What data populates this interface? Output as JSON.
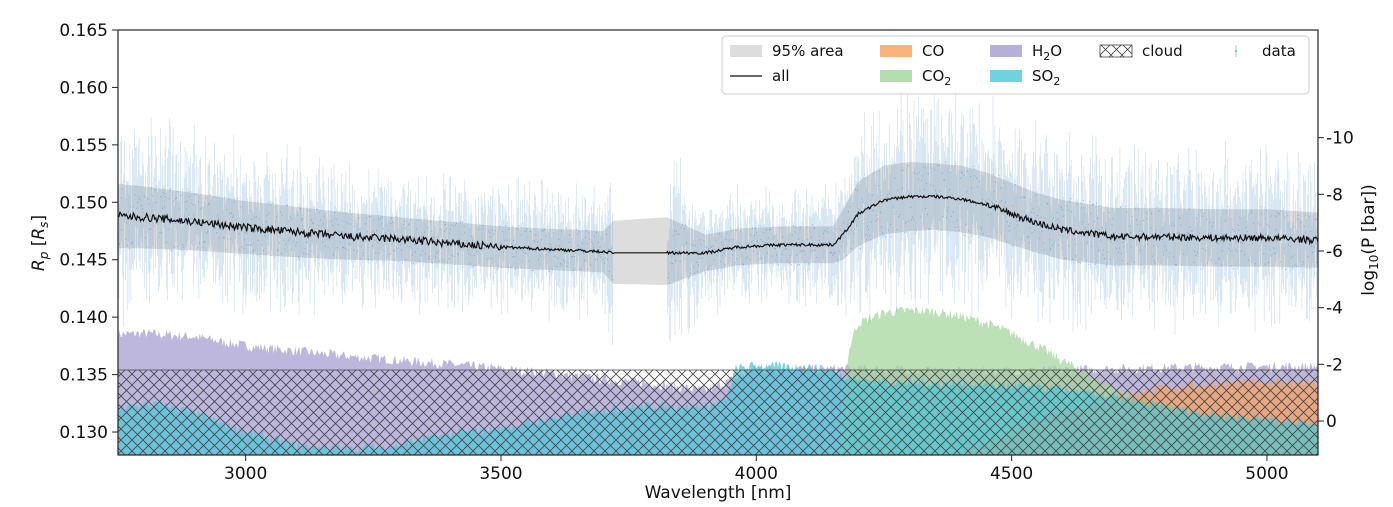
{
  "chart_data": {
    "type": "line",
    "xlabel": "Wavelength [nm]",
    "ylabel": "R_p [R_s]",
    "ylabel_right": "log10(P [bar])",
    "xlim": [
      2750,
      5100
    ],
    "ylim": [
      0.128,
      0.165
    ],
    "right_ylim": [
      1.2,
      -13.8
    ],
    "x_ticks": [
      3000,
      3500,
      4000,
      4500,
      5000
    ],
    "y_ticks": [
      0.13,
      0.135,
      0.14,
      0.145,
      0.15,
      0.155,
      0.16,
      0.165
    ],
    "right_ticks": [
      0,
      -2,
      -4,
      -6,
      -8,
      -10
    ],
    "grid": false,
    "legend_position": "top-right",
    "legend": [
      {
        "key": "area95",
        "label": "95% area"
      },
      {
        "key": "all",
        "label": "all"
      },
      {
        "key": "co",
        "label": "CO"
      },
      {
        "key": "co2",
        "label": "CO",
        "sub": "2"
      },
      {
        "key": "h2o",
        "label": "H",
        "sub": "2",
        "suffix": "O"
      },
      {
        "key": "so2",
        "label": "SO",
        "sub": "2"
      },
      {
        "key": "cloud",
        "label": "cloud"
      },
      {
        "key": "data",
        "label": "data"
      }
    ],
    "colors": {
      "area95": "#d9d9d9",
      "all": "#111111",
      "co": "#f7a15e",
      "co2": "#a3d69b",
      "h2o": "#a59bd0",
      "so2": "#4cc6d8",
      "data": "#4a90c9",
      "cloud_edge": "#444444"
    },
    "data_gap_nm": [
      3720,
      3825
    ],
    "model_all": {
      "x": [
        2750,
        2800,
        2900,
        3000,
        3100,
        3200,
        3300,
        3400,
        3500,
        3600,
        3700,
        3720,
        3825,
        3900,
        3940,
        3960,
        4000,
        4050,
        4100,
        4150,
        4170,
        4200,
        4250,
        4300,
        4350,
        4400,
        4450,
        4500,
        4550,
        4600,
        4700,
        4800,
        4900,
        5000,
        5100
      ],
      "y": [
        0.1488,
        0.1487,
        0.1483,
        0.1478,
        0.1474,
        0.147,
        0.1468,
        0.1464,
        0.1461,
        0.1459,
        0.1457,
        0.1456,
        0.1456,
        0.1456,
        0.1459,
        0.1461,
        0.1462,
        0.1463,
        0.1463,
        0.1463,
        0.1472,
        0.149,
        0.1502,
        0.1505,
        0.1505,
        0.1503,
        0.1498,
        0.149,
        0.1482,
        0.1476,
        0.147,
        0.147,
        0.1469,
        0.1469,
        0.1467
      ]
    },
    "band_95": {
      "x": [
        2750,
        2800,
        2900,
        3000,
        3100,
        3200,
        3300,
        3400,
        3500,
        3600,
        3700,
        3720,
        3825,
        3900,
        3940,
        3960,
        4000,
        4050,
        4100,
        4150,
        4170,
        4200,
        4250,
        4300,
        4350,
        4400,
        4450,
        4500,
        4550,
        4600,
        4700,
        4800,
        4900,
        5000,
        5100
      ],
      "lower": [
        0.146,
        0.146,
        0.1458,
        0.1455,
        0.1452,
        0.145,
        0.1449,
        0.1446,
        0.1443,
        0.1441,
        0.1439,
        0.1429,
        0.1428,
        0.144,
        0.1443,
        0.1445,
        0.1446,
        0.1447,
        0.1447,
        0.1447,
        0.145,
        0.1462,
        0.1472,
        0.1475,
        0.1476,
        0.1474,
        0.147,
        0.1463,
        0.1456,
        0.145,
        0.1445,
        0.1445,
        0.1444,
        0.1444,
        0.1443
      ],
      "upper": [
        0.1516,
        0.1514,
        0.1508,
        0.1501,
        0.1496,
        0.1491,
        0.1487,
        0.1483,
        0.1479,
        0.1477,
        0.1475,
        0.1484,
        0.1487,
        0.1472,
        0.1475,
        0.1477,
        0.1478,
        0.1479,
        0.1479,
        0.1479,
        0.1494,
        0.1518,
        0.1532,
        0.1535,
        0.1534,
        0.1532,
        0.1526,
        0.1517,
        0.1508,
        0.1502,
        0.1495,
        0.1495,
        0.1494,
        0.1494,
        0.1491
      ]
    },
    "contributions": [
      {
        "key": "h2o",
        "x": [
          2750,
          2800,
          2900,
          3000,
          3200,
          3400,
          3600,
          3700,
          3800,
          3900,
          3950,
          4000,
          4100,
          4200,
          4400,
          4600,
          4800,
          5000,
          5100
        ],
        "y": [
          0.1385,
          0.1386,
          0.1383,
          0.1375,
          0.1366,
          0.1359,
          0.1351,
          0.1346,
          0.1342,
          0.1336,
          0.1345,
          0.1356,
          0.1355,
          0.1355,
          0.1353,
          0.1354,
          0.1356,
          0.1357,
          0.1357
        ]
      },
      {
        "key": "co2",
        "x": [
          4160,
          4175,
          4180,
          4190,
          4200,
          4250,
          4300,
          4350,
          4400,
          4450,
          4500,
          4550,
          4600,
          4650,
          4700,
          4800,
          4900,
          5000,
          5100
        ],
        "y": [
          0.128,
          0.134,
          0.1368,
          0.1385,
          0.1395,
          0.1404,
          0.1406,
          0.1405,
          0.1401,
          0.1395,
          0.1386,
          0.1375,
          0.1362,
          0.135,
          0.1338,
          0.1322,
          0.1312,
          0.1306,
          0.1303
        ]
      },
      {
        "key": "co",
        "x": [
          4400,
          4500,
          4600,
          4700,
          4800,
          4900,
          5000,
          5100
        ],
        "y": [
          0.128,
          0.13,
          0.1318,
          0.133,
          0.1338,
          0.1342,
          0.1344,
          0.1342
        ]
      },
      {
        "key": "so2",
        "x": [
          2750,
          2800,
          2850,
          2900,
          3000,
          3100,
          3200,
          3280,
          3350,
          3400,
          3500,
          3600,
          3700,
          3800,
          3900,
          3940,
          3960,
          4000,
          4100,
          4150,
          4200,
          4300,
          4400,
          4500,
          4600,
          4700,
          4800,
          4900,
          5000,
          5100
        ],
        "y": [
          0.132,
          0.1324,
          0.1323,
          0.1316,
          0.13,
          0.1288,
          0.1285,
          0.1287,
          0.1294,
          0.1298,
          0.1303,
          0.1312,
          0.132,
          0.1323,
          0.1322,
          0.1327,
          0.1355,
          0.1358,
          0.1356,
          0.1353,
          0.1345,
          0.1343,
          0.1342,
          0.134,
          0.1337,
          0.133,
          0.1322,
          0.1315,
          0.1311,
          0.1308
        ]
      }
    ],
    "cloud": {
      "top_y": 0.1354,
      "regions": [
        {
          "x": [
            2750,
            2830,
            2900,
            2950,
            3000,
            3100,
            3200,
            3300,
            3400,
            3500,
            3600,
            3700,
            3720
          ],
          "y": [
            0.128,
            0.128,
            0.128,
            0.128,
            0.128,
            0.128,
            0.128,
            0.128,
            0.128,
            0.128,
            0.128,
            0.128,
            0.128
          ]
        }
      ]
    }
  }
}
